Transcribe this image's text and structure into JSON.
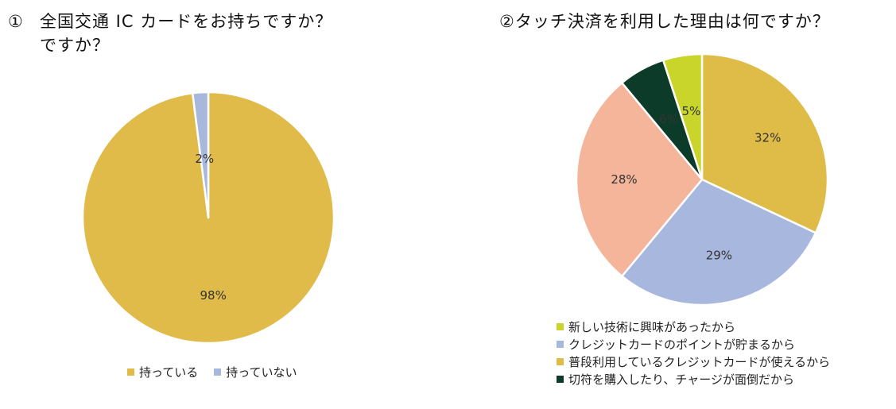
{
  "chart_data": [
    {
      "type": "pie",
      "title_number": "①",
      "title_line1": "全国交通 IC カードをお持ちですか？",
      "title_line2": "ですか？",
      "slices": [
        {
          "label": "持っている",
          "value": 98,
          "value_label": "98%",
          "color": "#e0bb4a"
        },
        {
          "label": "持っていない",
          "value": 2,
          "value_label": "2%",
          "color": "#a8b8dc"
        }
      ],
      "start_angle_deg": 0,
      "direction": "clockwise",
      "legend_position": "bottom"
    },
    {
      "type": "pie",
      "title": "②タッチ決済を利用した理由は何ですか？",
      "slices": [
        {
          "label": "普段利用しているクレジットカードが使えるから",
          "value": 32,
          "value_label": "32%",
          "color": "#dfbb48"
        },
        {
          "label": "クレジットカードのポイントが貯まるから",
          "value": 29,
          "value_label": "29%",
          "color": "#a7b7dd"
        },
        {
          "label": "",
          "value": 28,
          "value_label": "28%",
          "color": "#f5b59a"
        },
        {
          "label": "切符を購入したり、チャージが面倒だから",
          "value": 6,
          "value_label": "6%",
          "color": "#0d3b2a"
        },
        {
          "label": "新しい技術に興味があったから",
          "value": 5,
          "value_label": "5%",
          "color": "#c9d52a"
        }
      ],
      "legend": [
        {
          "label": "新しい技術に興味があったから",
          "color": "#c9d52a"
        },
        {
          "label": "クレジットカードのポイントが貯まるから",
          "color": "#a7b7dd"
        },
        {
          "label": "普段利用しているクレジットカードが使えるから",
          "color": "#dfbb48"
        },
        {
          "label": "切符を購入したり、チャージが面倒だから",
          "color": "#0d3b2a"
        }
      ],
      "start_angle_deg": 0,
      "direction": "clockwise",
      "legend_position": "bottom"
    }
  ]
}
